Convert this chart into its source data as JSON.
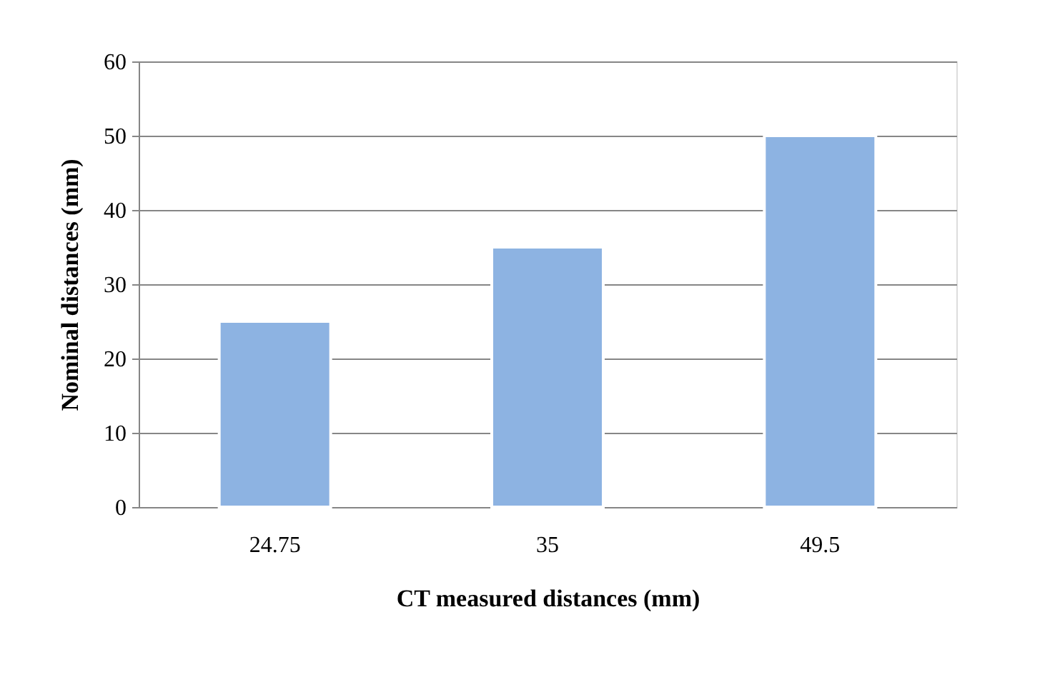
{
  "chart_data": {
    "type": "bar",
    "xlabel": "CT measured distances (mm)",
    "ylabel": "Nominal distances (mm)",
    "categories": [
      "24.75",
      "35",
      "49.5"
    ],
    "values": [
      25,
      35,
      50
    ],
    "color": "#8db3e2",
    "ylim": [
      0,
      60
    ],
    "yticks": [
      0,
      10,
      20,
      30,
      40,
      50,
      60
    ],
    "grid": "y"
  }
}
